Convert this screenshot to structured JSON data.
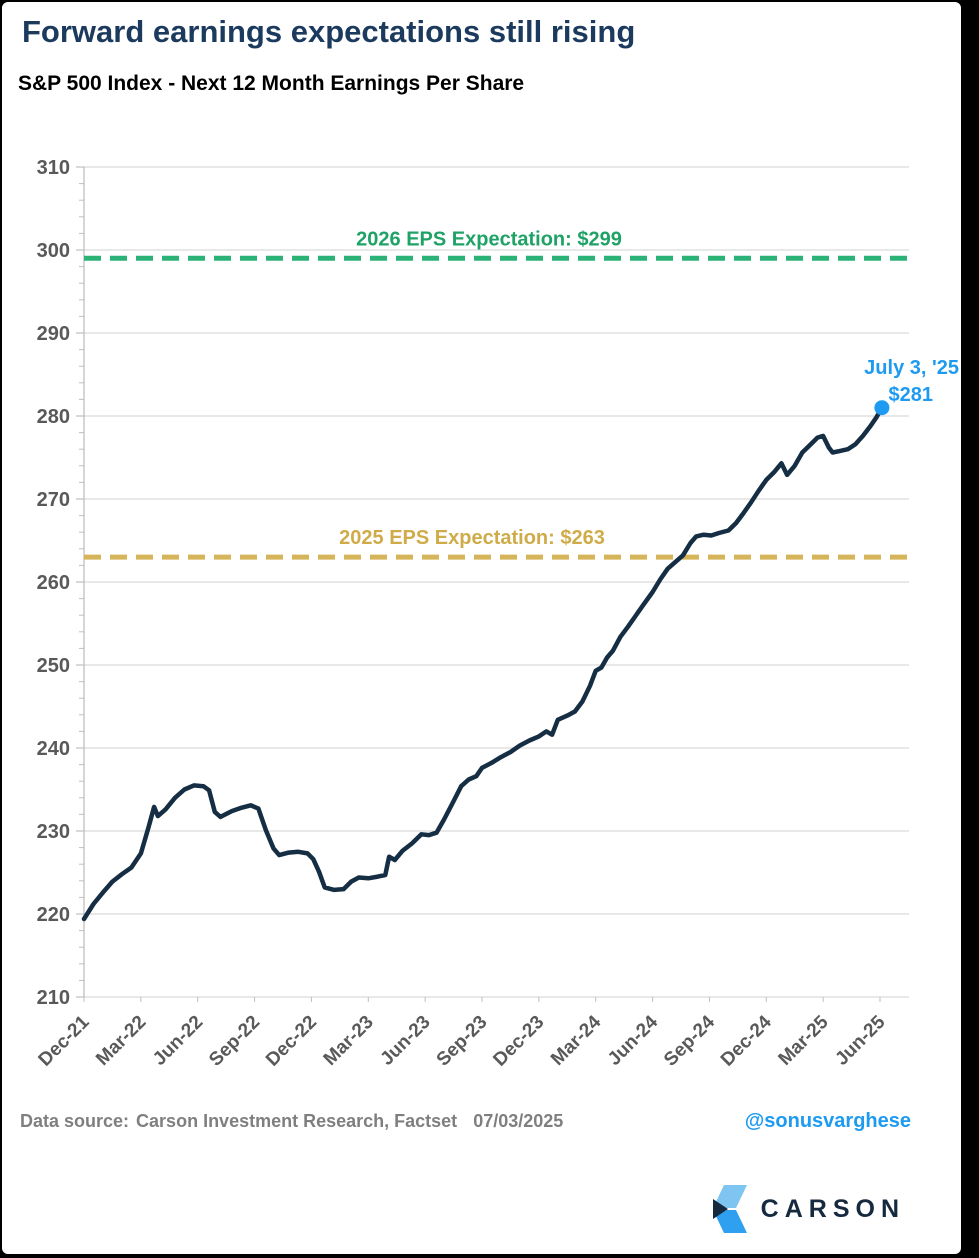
{
  "page": {
    "title": "Forward earnings expectations still rising",
    "subtitle": "S&P 500 Index - Next 12 Month Earnings Per Share"
  },
  "footer": {
    "source_label": "Data source:",
    "source_value": "Carson Investment Research, Factset",
    "date": "07/03/2025",
    "handle": "@sonusvarghese",
    "logo_text": "CARSON"
  },
  "colors": {
    "title_navy": "#1b3a5e",
    "series_navy": "#152e44",
    "green": "#2bb277",
    "green_text": "#1ea266",
    "gold": "#d5b45a",
    "gold_text": "#cfac49",
    "annotation_blue": "#1e9bf0",
    "axis_text_gray": "#595959",
    "gridline_gray": "#d9d9d9",
    "footer_gray": "#7f7f7f",
    "logo_light_blue": "#7fc5f1",
    "logo_blue": "#2f9ff0",
    "logo_navy": "#15293f"
  },
  "chart_data": {
    "type": "line",
    "title": "S&P 500 Index - Next 12 Month Earnings Per Share",
    "ylim": [
      210,
      310
    ],
    "ytick_interval": 10,
    "minor_ytick_interval": 2,
    "grid": "horizontal",
    "x_tick_labels": [
      "Dec-21",
      "Mar-22",
      "Jun-22",
      "Sep-22",
      "Dec-22",
      "Mar-23",
      "Jun-23",
      "Sep-23",
      "Dec-23",
      "Mar-24",
      "Jun-24",
      "Sep-24",
      "Dec-24",
      "Mar-25",
      "Jun-25"
    ],
    "series": [
      {
        "name": "S&P 500 Next 12 Month EPS",
        "color": "#152e44",
        "x_months_since_dec_2021": [
          0,
          0.5,
          1,
          1.5,
          2,
          2.5,
          3,
          3.4,
          3.7,
          3.9,
          4.3,
          4.8,
          5.3,
          5.8,
          6.3,
          6.6,
          6.9,
          7.2,
          7.8,
          8.3,
          8.8,
          9.2,
          9.6,
          10,
          10.3,
          10.8,
          11.3,
          11.8,
          12.1,
          12.4,
          12.7,
          13.2,
          13.7,
          14.1,
          14.5,
          15,
          15.5,
          15.9,
          16.1,
          16.4,
          16.8,
          17.3,
          17.8,
          18.2,
          18.6,
          19,
          19.5,
          19.9,
          20.3,
          20.7,
          21,
          21.5,
          22,
          22.5,
          23,
          23.5,
          24,
          24.4,
          24.7,
          25,
          25.5,
          25.9,
          26.3,
          26.7,
          27,
          27.3,
          27.6,
          27.9,
          28.3,
          28.7,
          29.1,
          29.5,
          30,
          30.4,
          30.8,
          31.2,
          31.6,
          32,
          32.3,
          32.7,
          33.1,
          33.5,
          34,
          34.4,
          34.8,
          35.2,
          35.6,
          36,
          36.4,
          36.8,
          37.1,
          37.5,
          37.9,
          38.3,
          38.7,
          39,
          39.3,
          39.5,
          39.9,
          40.3,
          40.7,
          41.1,
          41.5,
          41.8,
          42.1
        ],
        "values": [
          219.4,
          221.2,
          222.6,
          223.9,
          224.8,
          225.6,
          227.3,
          230.4,
          232.9,
          231.8,
          232.6,
          234,
          235,
          235.5,
          235.4,
          234.9,
          232.3,
          231.7,
          232.4,
          232.8,
          233.1,
          232.7,
          230.1,
          227.9,
          227.1,
          227.4,
          227.5,
          227.3,
          226.6,
          225.1,
          223.2,
          222.9,
          223,
          223.9,
          224.4,
          224.3,
          224.5,
          224.7,
          226.9,
          226.5,
          227.6,
          228.5,
          229.6,
          229.5,
          229.8,
          231.4,
          233.6,
          235.4,
          236.2,
          236.6,
          237.6,
          238.2,
          238.9,
          239.5,
          240.3,
          240.9,
          241.4,
          242,
          241.6,
          243.4,
          243.9,
          244.4,
          245.6,
          247.5,
          249.3,
          249.7,
          250.9,
          251.7,
          253.4,
          254.6,
          255.9,
          257.2,
          258.8,
          260.3,
          261.6,
          262.4,
          263.2,
          264.7,
          265.5,
          265.7,
          265.6,
          265.9,
          266.2,
          267.1,
          268.3,
          269.6,
          271,
          272.3,
          273.2,
          274.3,
          272.9,
          274,
          275.6,
          276.5,
          277.4,
          277.6,
          276.2,
          275.6,
          275.8,
          276,
          276.6,
          277.6,
          278.8,
          279.8,
          281
        ]
      }
    ],
    "reference_lines": [
      {
        "label": "2026 EPS Expectation: $299",
        "value": 299,
        "color": "#2bb277",
        "text_color": "#1ea266",
        "style": "dashed"
      },
      {
        "label": "2025 EPS Expectation: $263",
        "value": 263,
        "color": "#d5b45a",
        "text_color": "#cfac49",
        "style": "dashed"
      }
    ],
    "end_annotation": {
      "line1": "July 3, '25",
      "line2": "$281",
      "x_months_since_dec_2021": 42.1,
      "value": 281,
      "color": "#1e9bf0"
    }
  }
}
